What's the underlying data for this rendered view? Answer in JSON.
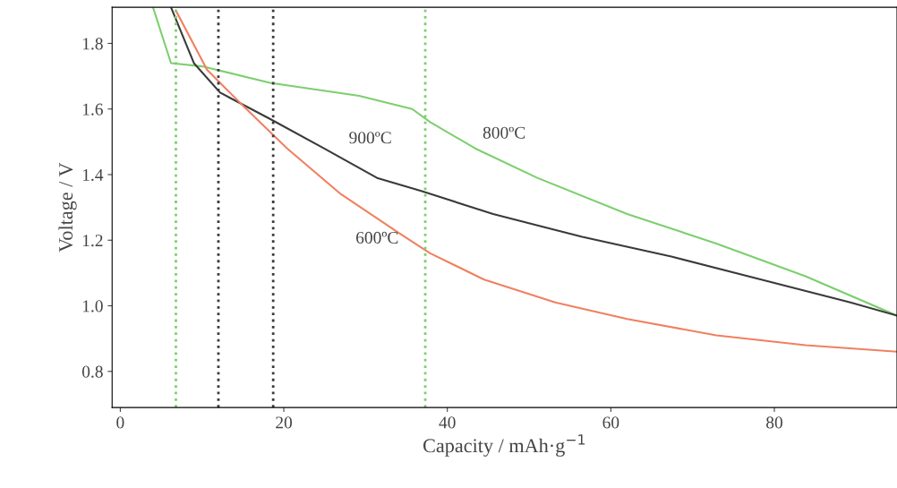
{
  "chart_data": {
    "type": "line",
    "xlabel": "Capacity / mAh·g$^{−1}$",
    "ylabel": "Voltage / V",
    "xlim": [
      -1,
      95
    ],
    "ylim": [
      0.69,
      1.91
    ],
    "xticks": [
      0,
      20,
      40,
      60,
      80
    ],
    "yticks": [
      0.8,
      {
        "value": 1.0,
        "label": "1.0"
      },
      1.2,
      1.4,
      1.6,
      1.8
    ],
    "grid": false,
    "legend": false,
    "marker": "none",
    "line_style": "solid",
    "series": [
      {
        "name": "800ºC",
        "color": "#7ccf6e",
        "x": [
          4.0,
          6.2,
          10,
          18.3,
          29.2,
          35.7,
          37.9,
          43.4,
          51,
          62,
          72.9,
          83.8,
          95
        ],
        "values": [
          1.91,
          1.74,
          1.73,
          1.68,
          1.64,
          1.6,
          1.56,
          1.48,
          1.39,
          1.28,
          1.19,
          1.09,
          0.97
        ]
      },
      {
        "name": "900ºC",
        "color": "#3a3a3a",
        "x": [
          6.2,
          9,
          12.2,
          18.3,
          24.9,
          31.4,
          36.8,
          45.6,
          56.5,
          67.4,
          78.4,
          89.3,
          95
        ],
        "values": [
          1.91,
          1.74,
          1.65,
          1.57,
          1.48,
          1.39,
          1.35,
          1.28,
          1.21,
          1.15,
          1.08,
          1.01,
          0.97
        ]
      },
      {
        "name": "600ºC",
        "color": "#f08060",
        "x": [
          6.8,
          10.6,
          15,
          20.4,
          27,
          33.6,
          37.9,
          44.5,
          53.2,
          62,
          72.9,
          83.8,
          95
        ],
        "values": [
          1.9,
          1.72,
          1.61,
          1.48,
          1.34,
          1.23,
          1.16,
          1.08,
          1.01,
          0.96,
          0.91,
          0.88,
          0.86
        ]
      }
    ],
    "ref_lines": [
      {
        "axis": "x",
        "value": 6.8,
        "color": "#7ccf6e",
        "line_style": "dotted"
      },
      {
        "axis": "x",
        "value": 37.3,
        "color": "#7ccf6e",
        "line_style": "dotted"
      },
      {
        "axis": "x",
        "value": 12.0,
        "color": "#3a3a3a",
        "line_style": "dotted"
      },
      {
        "axis": "x",
        "value": 18.7,
        "color": "#3a3a3a",
        "line_style": "dotted"
      }
    ]
  }
}
